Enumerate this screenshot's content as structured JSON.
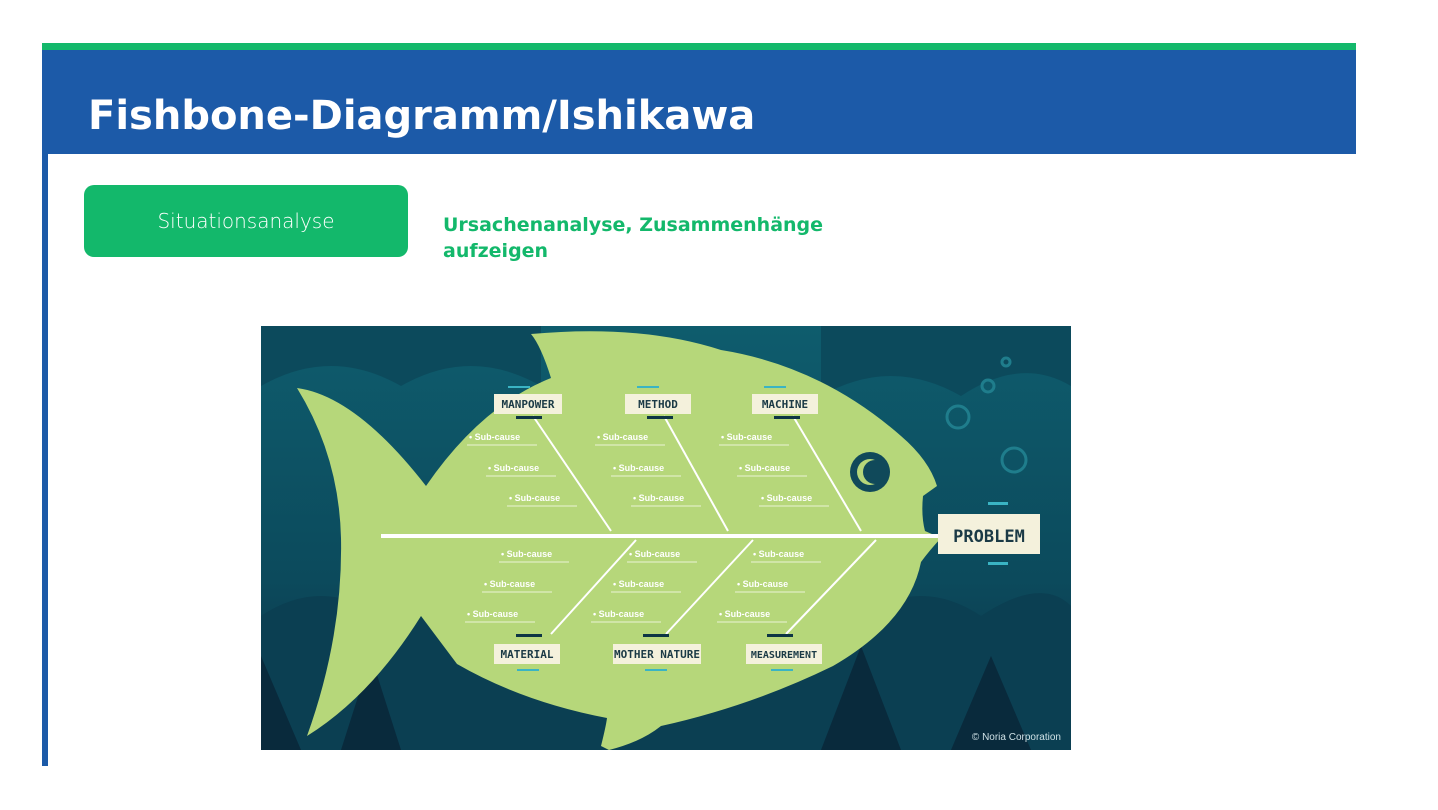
{
  "header": {
    "title": "Fishbone-Diagramm/Ishikawa"
  },
  "tag": {
    "label": "Situationsanalyse"
  },
  "subtitle": "Ursachenanalyse, Zusammenhänge aufzeigen",
  "diagram": {
    "problem_label": "PROBLEM",
    "categories_top": [
      "MANPOWER",
      "METHOD",
      "MACHINE"
    ],
    "categories_bottom": [
      "MATERIAL",
      "MOTHER NATURE",
      "MEASUREMENT"
    ],
    "subcause_label": "• Sub-cause",
    "copyright": "© Noria Corporation",
    "colors": {
      "background": "#0f5566",
      "fish": "#b6d77a",
      "label_box": "#f4f1dc",
      "accent": "#3ab4c4"
    }
  }
}
